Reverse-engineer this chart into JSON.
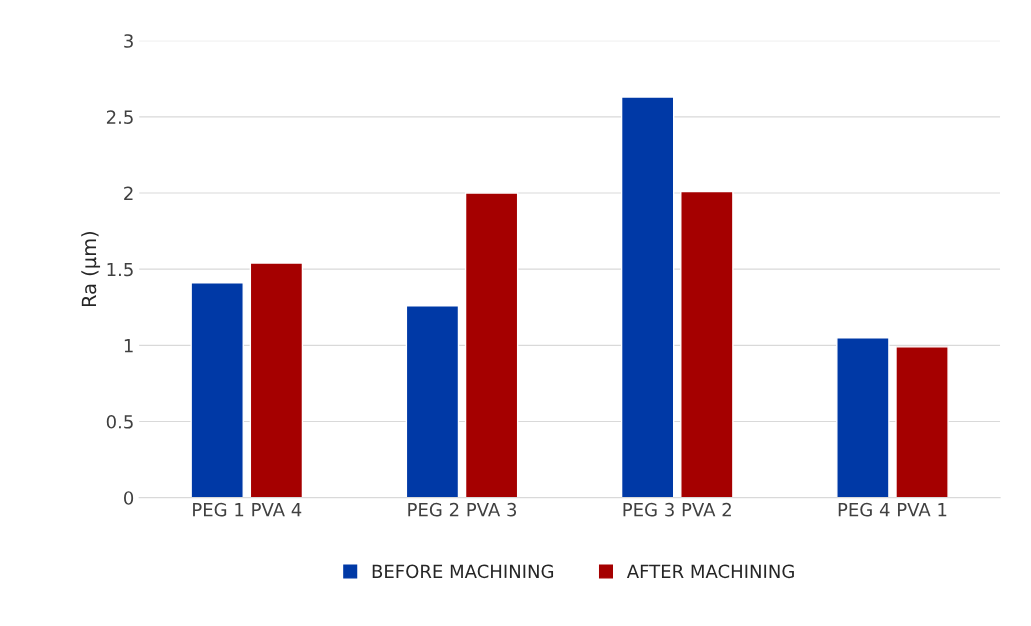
{
  "chart_data": {
    "type": "bar",
    "ylabel": "Ra (µm)",
    "categories": [
      "PEG 1 PVA 4",
      "PEG 2 PVA 3",
      "PEG 3 PVA 2",
      "PEG 4 PVA 1"
    ],
    "series": [
      {
        "name": "BEFORE MACHINING",
        "color": "#0039a6",
        "values": [
          1.41,
          1.26,
          2.63,
          1.05
        ]
      },
      {
        "name": "AFTER MACHINING",
        "color": "#a50000",
        "values": [
          1.54,
          2.0,
          2.01,
          0.99
        ]
      }
    ],
    "ylim": [
      0,
      3
    ],
    "yticks": [
      0,
      0.5,
      1,
      1.5,
      2,
      2.5,
      3
    ],
    "grid": "y",
    "legend": "bottom"
  }
}
